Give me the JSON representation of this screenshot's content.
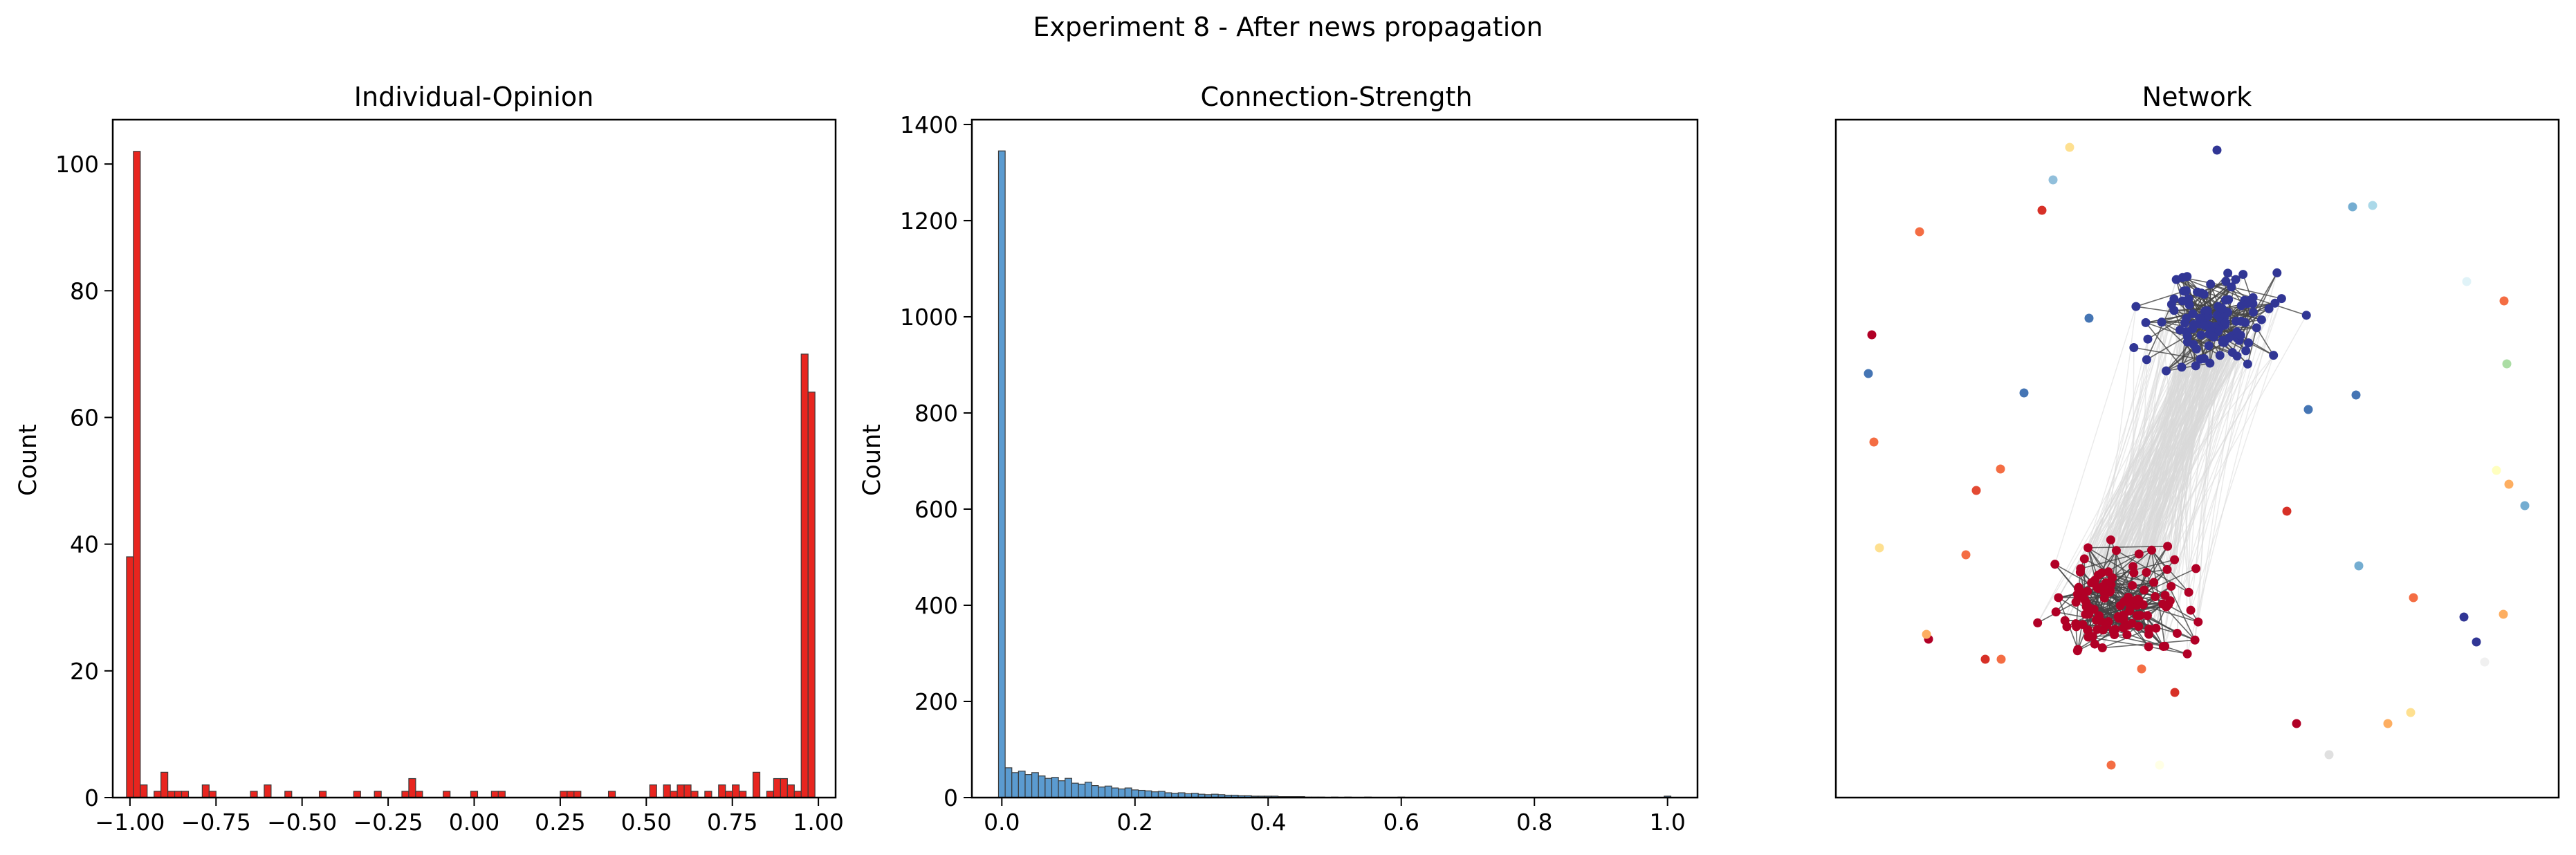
{
  "figure_title": "Experiment 8 - After news propagation",
  "chart_data": [
    {
      "type": "bar",
      "title": "Individual-Opinion",
      "xlabel": "",
      "ylabel": "Count",
      "xlim": [
        -1.05,
        1.05
      ],
      "ylim": [
        0,
        107
      ],
      "bin_width": 0.02,
      "color": "#e8251f",
      "x_ticks": [
        -1.0,
        -0.75,
        -0.5,
        -0.25,
        0.0,
        0.25,
        0.5,
        0.75,
        1.0
      ],
      "x_tick_labels": [
        "−1.00",
        "−0.75",
        "−0.50",
        "−0.25",
        "0.00",
        "0.25",
        "0.50",
        "0.75",
        "1.00"
      ],
      "y_ticks": [
        0,
        20,
        40,
        60,
        80,
        100
      ],
      "y_tick_labels": [
        "0",
        "20",
        "40",
        "60",
        "80",
        "100"
      ],
      "bins": [
        {
          "x": -1.0,
          "count": 38
        },
        {
          "x": -0.98,
          "count": 102
        },
        {
          "x": -0.96,
          "count": 2
        },
        {
          "x": -0.92,
          "count": 1
        },
        {
          "x": -0.9,
          "count": 4
        },
        {
          "x": -0.88,
          "count": 1
        },
        {
          "x": -0.86,
          "count": 1
        },
        {
          "x": -0.84,
          "count": 1
        },
        {
          "x": -0.78,
          "count": 2
        },
        {
          "x": -0.76,
          "count": 1
        },
        {
          "x": -0.64,
          "count": 1
        },
        {
          "x": -0.6,
          "count": 2
        },
        {
          "x": -0.54,
          "count": 1
        },
        {
          "x": -0.44,
          "count": 1
        },
        {
          "x": -0.34,
          "count": 1
        },
        {
          "x": -0.28,
          "count": 1
        },
        {
          "x": -0.2,
          "count": 1
        },
        {
          "x": -0.18,
          "count": 3
        },
        {
          "x": -0.16,
          "count": 1
        },
        {
          "x": -0.08,
          "count": 1
        },
        {
          "x": 0.0,
          "count": 1
        },
        {
          "x": 0.06,
          "count": 1
        },
        {
          "x": 0.08,
          "count": 1
        },
        {
          "x": 0.26,
          "count": 1
        },
        {
          "x": 0.28,
          "count": 1
        },
        {
          "x": 0.3,
          "count": 1
        },
        {
          "x": 0.4,
          "count": 1
        },
        {
          "x": 0.52,
          "count": 2
        },
        {
          "x": 0.56,
          "count": 2
        },
        {
          "x": 0.58,
          "count": 1
        },
        {
          "x": 0.6,
          "count": 2
        },
        {
          "x": 0.62,
          "count": 2
        },
        {
          "x": 0.64,
          "count": 1
        },
        {
          "x": 0.68,
          "count": 1
        },
        {
          "x": 0.72,
          "count": 2
        },
        {
          "x": 0.74,
          "count": 1
        },
        {
          "x": 0.76,
          "count": 2
        },
        {
          "x": 0.78,
          "count": 1
        },
        {
          "x": 0.82,
          "count": 4
        },
        {
          "x": 0.86,
          "count": 1
        },
        {
          "x": 0.88,
          "count": 3
        },
        {
          "x": 0.9,
          "count": 3
        },
        {
          "x": 0.92,
          "count": 2
        },
        {
          "x": 0.94,
          "count": 1
        },
        {
          "x": 0.96,
          "count": 70
        },
        {
          "x": 0.98,
          "count": 64
        }
      ]
    },
    {
      "type": "bar",
      "title": "Connection-Strength",
      "xlabel": "",
      "ylabel": "Count",
      "xlim": [
        -0.045,
        1.045
      ],
      "ylim": [
        0,
        1410
      ],
      "bin_width": 0.01,
      "color": "#5b9bd0",
      "x_ticks": [
        0.0,
        0.2,
        0.4,
        0.6,
        0.8,
        1.0
      ],
      "x_tick_labels": [
        "0.0",
        "0.2",
        "0.4",
        "0.6",
        "0.8",
        "1.0"
      ],
      "y_ticks": [
        0,
        200,
        400,
        600,
        800,
        1000,
        1200,
        1400
      ],
      "y_tick_labels": [
        "0",
        "200",
        "400",
        "600",
        "800",
        "1000",
        "1200",
        "1400"
      ],
      "bins": [
        {
          "x": 0.0,
          "count": 1345
        },
        {
          "x": 0.01,
          "count": 62
        },
        {
          "x": 0.02,
          "count": 52
        },
        {
          "x": 0.03,
          "count": 55
        },
        {
          "x": 0.04,
          "count": 48
        },
        {
          "x": 0.05,
          "count": 52
        },
        {
          "x": 0.06,
          "count": 45
        },
        {
          "x": 0.07,
          "count": 40
        },
        {
          "x": 0.08,
          "count": 42
        },
        {
          "x": 0.09,
          "count": 35
        },
        {
          "x": 0.1,
          "count": 40
        },
        {
          "x": 0.11,
          "count": 30
        },
        {
          "x": 0.12,
          "count": 28
        },
        {
          "x": 0.13,
          "count": 32
        },
        {
          "x": 0.14,
          "count": 25
        },
        {
          "x": 0.15,
          "count": 22
        },
        {
          "x": 0.16,
          "count": 24
        },
        {
          "x": 0.17,
          "count": 20
        },
        {
          "x": 0.18,
          "count": 18
        },
        {
          "x": 0.19,
          "count": 20
        },
        {
          "x": 0.2,
          "count": 16
        },
        {
          "x": 0.21,
          "count": 15
        },
        {
          "x": 0.22,
          "count": 14
        },
        {
          "x": 0.23,
          "count": 12
        },
        {
          "x": 0.24,
          "count": 13
        },
        {
          "x": 0.25,
          "count": 10
        },
        {
          "x": 0.26,
          "count": 9
        },
        {
          "x": 0.27,
          "count": 10
        },
        {
          "x": 0.28,
          "count": 8
        },
        {
          "x": 0.29,
          "count": 9
        },
        {
          "x": 0.3,
          "count": 7
        },
        {
          "x": 0.31,
          "count": 6
        },
        {
          "x": 0.32,
          "count": 7
        },
        {
          "x": 0.33,
          "count": 6
        },
        {
          "x": 0.34,
          "count": 5
        },
        {
          "x": 0.35,
          "count": 5
        },
        {
          "x": 0.36,
          "count": 4
        },
        {
          "x": 0.37,
          "count": 4
        },
        {
          "x": 0.38,
          "count": 3
        },
        {
          "x": 0.39,
          "count": 3
        },
        {
          "x": 0.4,
          "count": 3
        },
        {
          "x": 0.41,
          "count": 3
        },
        {
          "x": 0.42,
          "count": 2
        },
        {
          "x": 0.43,
          "count": 2
        },
        {
          "x": 0.44,
          "count": 2
        },
        {
          "x": 0.45,
          "count": 2
        },
        {
          "x": 0.46,
          "count": 1
        },
        {
          "x": 0.47,
          "count": 1
        },
        {
          "x": 0.48,
          "count": 1
        },
        {
          "x": 0.5,
          "count": 1
        },
        {
          "x": 0.52,
          "count": 1
        },
        {
          "x": 0.55,
          "count": 1
        },
        {
          "x": 0.6,
          "count": 1
        },
        {
          "x": 1.0,
          "count": 3
        }
      ]
    },
    {
      "type": "scatter",
      "title": "Network",
      "xlabel": "",
      "ylabel": "",
      "axis_ticks": false,
      "colors": {
        "dark_blue": "#313695",
        "dark_red": "#b10026",
        "edge_dark": "#444444",
        "edge_light": "#d9d9d9"
      }
    }
  ]
}
